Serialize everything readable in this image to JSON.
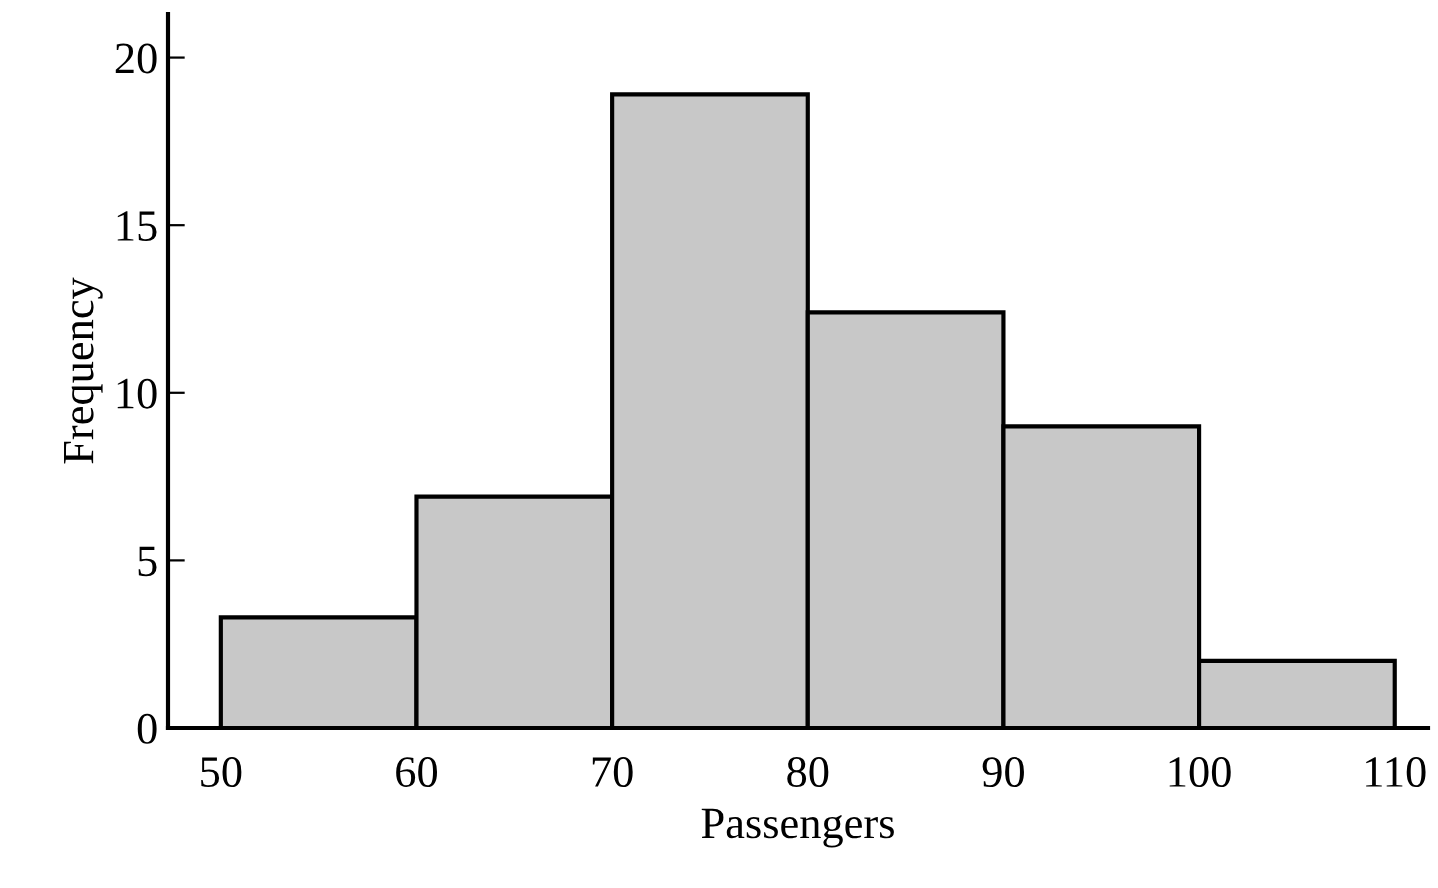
{
  "chart_data": {
    "type": "histogram",
    "xlabel": "Passengers",
    "ylabel": "Frequency",
    "bins": [
      50,
      60,
      70,
      80,
      90,
      100,
      110
    ],
    "values": [
      3.3,
      6.9,
      18.9,
      12.4,
      9,
      2
    ],
    "color": "#c8c8c8",
    "xlim": [
      47.3,
      111.7
    ],
    "ylim": [
      0,
      21.3
    ],
    "xticks": [
      50,
      60,
      70,
      80,
      90,
      100,
      110
    ],
    "yticks": [
      0,
      5,
      10,
      15,
      20
    ],
    "grid": false
  }
}
